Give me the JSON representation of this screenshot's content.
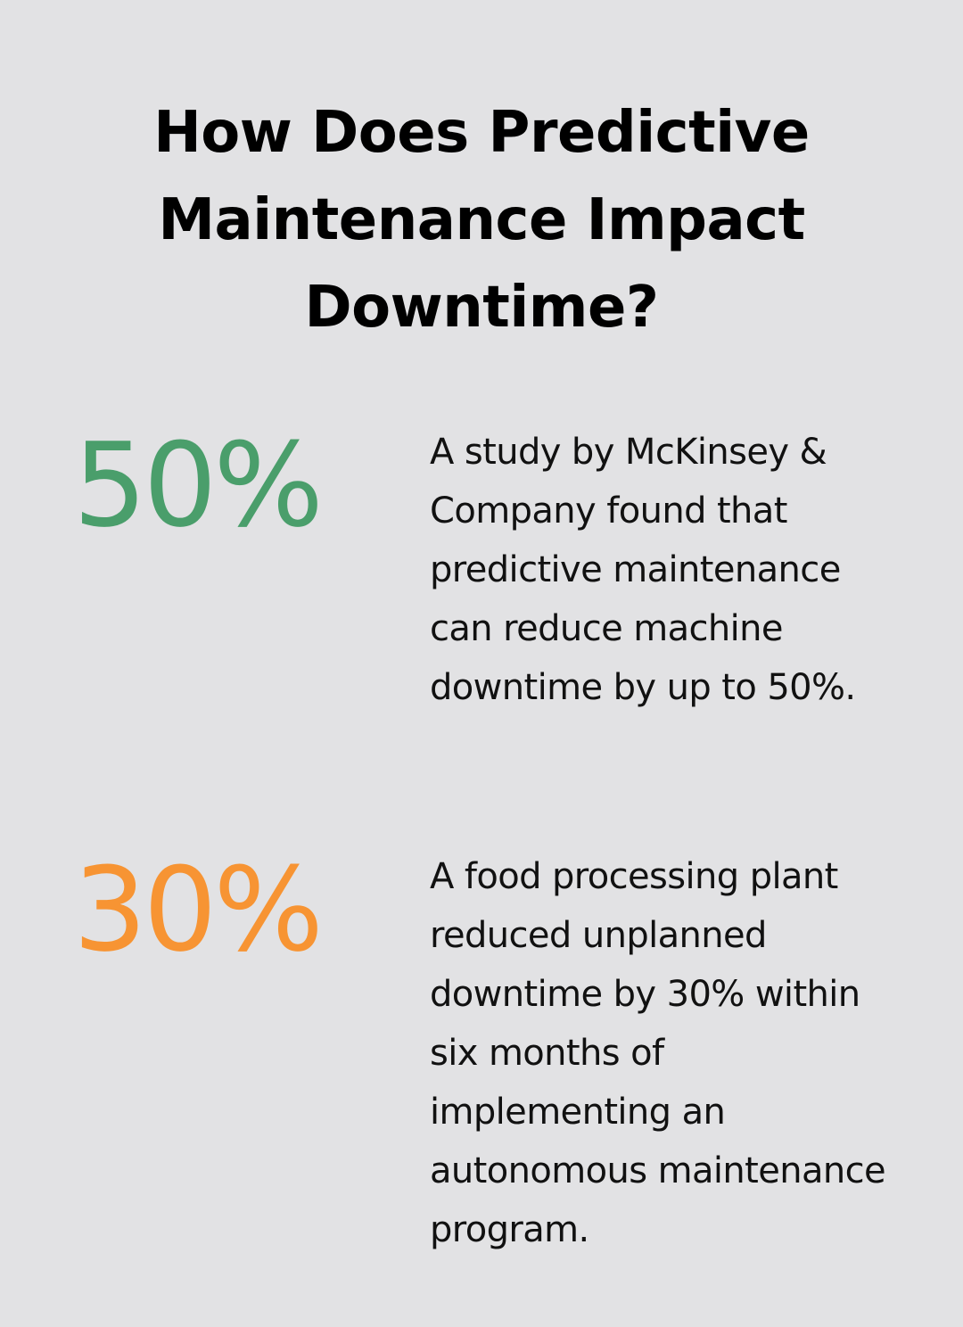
{
  "title": "How Does Predictive Maintenance Impact Downtime?",
  "stats": [
    {
      "value": "50%",
      "color": "#4a9e6b",
      "description": "A study by McKinsey & Company found that predictive maintenance can reduce machine downtime by up to 50%."
    },
    {
      "value": "30%",
      "color": "#f79433",
      "description": "A food processing plant reduced unplanned downtime by 30% within six months of implementing an autonomous maintenance program."
    }
  ]
}
